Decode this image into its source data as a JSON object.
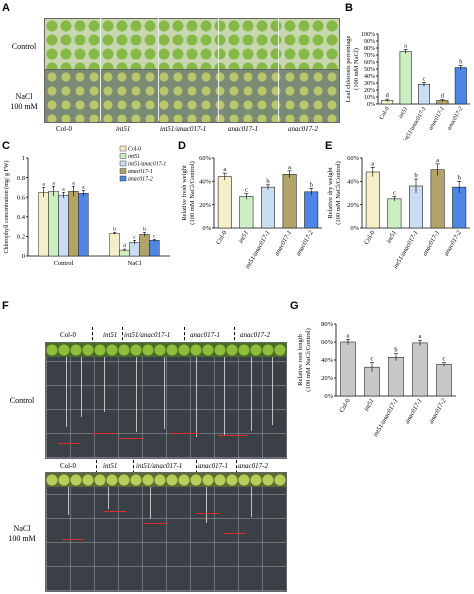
{
  "panel_letters": {
    "A": "A",
    "B": "B",
    "C": "C",
    "D": "D",
    "E": "E",
    "F": "F",
    "G": "G"
  },
  "panel_a": {
    "row_labels": [
      "Control",
      "NaCl\n100 mM"
    ],
    "genotypes": [
      "Col-0",
      "int51",
      "int51/anac017-1",
      "anac017-1",
      "anac017-2"
    ]
  },
  "panel_f": {
    "row_labels": [
      "Control",
      "NaCl\n100 mM"
    ],
    "genotypes": [
      "Col-0",
      "int51",
      "int51/anac017-1",
      "anac017-1",
      "anac017-2"
    ]
  },
  "colors": {
    "Col-0": "#f4efc8",
    "int51": "#cdeec2",
    "int51/anac017-1": "#c9dcf2",
    "anac017-1": "#b2a469",
    "anac017-2": "#4f86e6",
    "gray_bar": "#c8c8c8"
  },
  "chart_data": [
    {
      "id": "B",
      "type": "bar",
      "categories": [
        "Col-0",
        "int51",
        "int51/anac017-1",
        "anac017-1",
        "anac017-2"
      ],
      "values": [
        5,
        75,
        28,
        5,
        52
      ],
      "errors": [
        2,
        3,
        3,
        1.5,
        3
      ],
      "letters": [
        "d",
        "a",
        "c",
        "d",
        "b"
      ],
      "ylabel": "Leaf chlorosis percentage\n(100 mM NaCl)",
      "ylim": [
        0,
        100
      ],
      "yticks": [
        "0%",
        "10%",
        "20%",
        "30%",
        "40%",
        "50%",
        "60%",
        "70%",
        "80%",
        "90%",
        "100%"
      ]
    },
    {
      "id": "C",
      "type": "bar",
      "groups": [
        "Control",
        "NaCl"
      ],
      "series": [
        {
          "name": "Col-0",
          "values": [
            0.65,
            0.23
          ],
          "errors": [
            0.05,
            0.01
          ],
          "letters": [
            "a",
            "b"
          ]
        },
        {
          "name": "int51",
          "values": [
            0.66,
            0.06
          ],
          "errors": [
            0.05,
            0.01
          ],
          "letters": [
            "a",
            "d"
          ]
        },
        {
          "name": "int51/anac017-1",
          "values": [
            0.62,
            0.14
          ],
          "errors": [
            0.03,
            0.02
          ],
          "letters": [
            "a",
            "c"
          ]
        },
        {
          "name": "anac017-1",
          "values": [
            0.66,
            0.22
          ],
          "errors": [
            0.05,
            0.02
          ],
          "letters": [
            "a",
            "b"
          ]
        },
        {
          "name": "anac017-2",
          "values": [
            0.64,
            0.16
          ],
          "errors": [
            0.03,
            0.01
          ],
          "letters": [
            "a",
            "c"
          ]
        }
      ],
      "ylabel": "Chlorophyll concentration (mg/ g FW)",
      "ylim": [
        0,
        1
      ],
      "yticks": [
        "0",
        "0.2",
        "0.4",
        "0.6",
        "0.8",
        "1"
      ],
      "legend_position": "top-right"
    },
    {
      "id": "D",
      "type": "bar",
      "categories": [
        "Col-0",
        "int51",
        "int51/anac017-1",
        "anac017-1",
        "anac017-2"
      ],
      "values": [
        44,
        27,
        35,
        46,
        31
      ],
      "errors": [
        3,
        2.5,
        2,
        3,
        3
      ],
      "letters": [
        "a",
        "c",
        "b",
        "a",
        "b"
      ],
      "ylabel": "Relative fresh weight\n(100 mM NaCl/Control)",
      "ylim": [
        0,
        60
      ],
      "yticks": [
        "0%",
        "20%",
        "40%",
        "60%"
      ]
    },
    {
      "id": "E",
      "type": "bar",
      "categories": [
        "Col-0",
        "int51",
        "int51/anac017-1",
        "anac017-1",
        "anac017-2"
      ],
      "values": [
        48,
        25,
        36,
        50,
        35
      ],
      "errors": [
        4,
        2,
        6,
        5,
        5
      ],
      "letters": [
        "a",
        "c",
        "b",
        "a",
        "b"
      ],
      "ylabel": "Relative dry weight\n(100 mM NaCl/Control)",
      "ylim": [
        0,
        60
      ],
      "yticks": [
        "0%",
        "20%",
        "40%",
        "60%"
      ]
    },
    {
      "id": "G",
      "type": "bar",
      "categories": [
        "Col-0",
        "int51",
        "int51/anac017-1",
        "anac017-1",
        "anac017-2"
      ],
      "values": [
        60,
        32,
        43,
        59,
        35
      ],
      "errors": [
        3,
        5,
        4,
        3,
        2
      ],
      "letters": [
        "a",
        "c",
        "b",
        "a",
        "c"
      ],
      "ylabel": "Relative root length\n(100 mM NaCl/Control)",
      "ylim": [
        0,
        80
      ],
      "yticks": [
        "0%",
        "20%",
        "40%",
        "60%",
        "80%"
      ]
    }
  ]
}
